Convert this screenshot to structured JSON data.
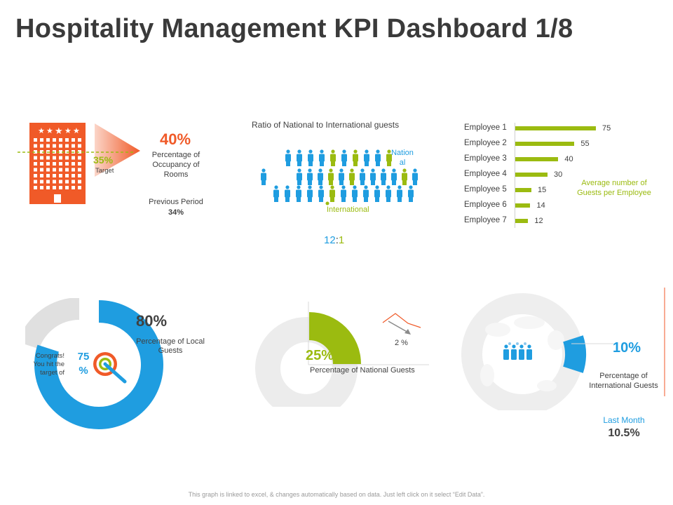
{
  "page": {
    "title": "Hospitality Management KPI Dashboard 1/8",
    "footer": "This graph is linked to excel, & changes automatically based on data. Just left click on it select “Edit Data”."
  },
  "occupancy": {
    "value": "40%",
    "label": "Percentage of Occupancy of Rooms",
    "target_value": "35%",
    "target_label": "Target",
    "previous_label": "Previous Period",
    "previous_value": "34%"
  },
  "ratio": {
    "title": "Ratio of National to International guests",
    "national_label": "Nation al",
    "international_label": "International",
    "ratio_left": "12",
    "ratio_sep": ":",
    "ratio_right": "1"
  },
  "employees": {
    "caption": "Average number of Guests per Employee",
    "rows": [
      {
        "label": "Employee 1",
        "value": 75
      },
      {
        "label": "Employee 2",
        "value": 55
      },
      {
        "label": "Employee 3",
        "value": 40
      },
      {
        "label": "Employee 4",
        "value": 30
      },
      {
        "label": "Employee 5",
        "value": 15
      },
      {
        "label": "Employee 6",
        "value": 14
      },
      {
        "label": "Employee 7",
        "value": 12
      }
    ]
  },
  "local": {
    "value": "80%",
    "label": "Percentage of Local Guests",
    "target_value": "75 %",
    "congrats": "Congrats! You hit the target of",
    "fraction": 0.8
  },
  "national": {
    "value": "25%",
    "label": "Percentage of National Guests",
    "change": "2 %",
    "fraction": 0.25
  },
  "international": {
    "value": "10%",
    "label": "Percentage of International Guests",
    "last_month_label": "Last Month",
    "last_month_value": "10.5%",
    "fraction": 0.1
  },
  "colors": {
    "orange": "#f05a28",
    "green": "#9bbb10",
    "blue": "#1f9de0",
    "grey": "#ececec",
    "dark": "#3a3a3a"
  }
}
